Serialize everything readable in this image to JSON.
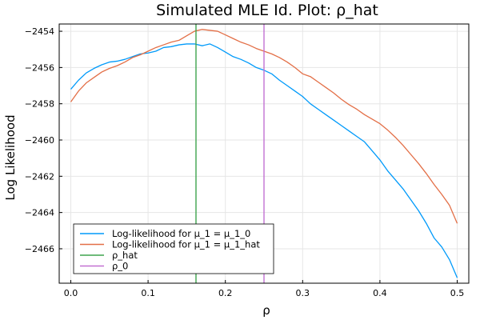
{
  "chart_data": {
    "type": "line",
    "title": "Simulated MLE Id. Plot: ρ_hat",
    "xlabel": "ρ",
    "ylabel": "Log Likelihood",
    "xlim": [
      -0.015,
      0.515
    ],
    "ylim": [
      -2467.9,
      -2453.6
    ],
    "xticks": [
      0.0,
      0.1,
      0.2,
      0.3,
      0.4,
      0.5
    ],
    "xtick_labels": [
      "0.0",
      "0.1",
      "0.2",
      "0.3",
      "0.4",
      "0.5"
    ],
    "yticks": [
      -2466,
      -2464,
      -2462,
      -2460,
      -2458,
      -2456,
      -2454
    ],
    "ytick_labels": [
      "−2466",
      "−2464",
      "−2462",
      "−2460",
      "−2458",
      "−2456",
      "−2454"
    ],
    "grid": true,
    "legend_position": "bottom-left",
    "x": [
      0.0,
      0.01,
      0.02,
      0.03,
      0.04,
      0.05,
      0.06,
      0.07,
      0.08,
      0.09,
      0.1,
      0.11,
      0.12,
      0.13,
      0.14,
      0.15,
      0.16,
      0.17,
      0.18,
      0.19,
      0.2,
      0.21,
      0.22,
      0.23,
      0.24,
      0.25,
      0.26,
      0.27,
      0.28,
      0.29,
      0.3,
      0.31,
      0.32,
      0.33,
      0.34,
      0.35,
      0.36,
      0.37,
      0.38,
      0.39,
      0.4,
      0.41,
      0.42,
      0.43,
      0.44,
      0.45,
      0.46,
      0.47,
      0.48,
      0.49,
      0.5
    ],
    "series": [
      {
        "name": "Log-likelihood for μ_1 = μ_1_0",
        "color": "#009AFA",
        "values": [
          -2457.2,
          -2456.7,
          -2456.3,
          -2456.05,
          -2455.85,
          -2455.7,
          -2455.65,
          -2455.55,
          -2455.4,
          -2455.25,
          -2455.2,
          -2455.1,
          -2454.9,
          -2454.85,
          -2454.75,
          -2454.7,
          -2454.7,
          -2454.8,
          -2454.7,
          -2454.9,
          -2455.15,
          -2455.4,
          -2455.55,
          -2455.75,
          -2456.0,
          -2456.15,
          -2456.35,
          -2456.7,
          -2457.0,
          -2457.3,
          -2457.6,
          -2458.0,
          -2458.3,
          -2458.6,
          -2458.9,
          -2459.2,
          -2459.5,
          -2459.8,
          -2460.1,
          -2460.6,
          -2461.1,
          -2461.7,
          -2462.2,
          -2462.7,
          -2463.3,
          -2463.9,
          -2464.6,
          -2465.4,
          -2465.9,
          -2466.6,
          -2467.6
        ]
      },
      {
        "name": "Log-likelihood for μ_1 = μ_1_hat",
        "color": "#E36F47",
        "values": [
          -2457.9,
          -2457.3,
          -2456.85,
          -2456.55,
          -2456.25,
          -2456.05,
          -2455.9,
          -2455.7,
          -2455.45,
          -2455.3,
          -2455.1,
          -2454.9,
          -2454.75,
          -2454.6,
          -2454.5,
          -2454.25,
          -2454.0,
          -2453.9,
          -2453.95,
          -2454.0,
          -2454.2,
          -2454.4,
          -2454.6,
          -2454.75,
          -2454.95,
          -2455.1,
          -2455.25,
          -2455.45,
          -2455.7,
          -2456.0,
          -2456.35,
          -2456.5,
          -2456.8,
          -2457.1,
          -2457.4,
          -2457.75,
          -2458.05,
          -2458.3,
          -2458.6,
          -2458.85,
          -2459.1,
          -2459.45,
          -2459.85,
          -2460.3,
          -2460.8,
          -2461.3,
          -2461.85,
          -2462.45,
          -2463.0,
          -2463.6,
          -2464.6
        ]
      }
    ],
    "vlines": [
      {
        "name": "ρ_hat",
        "x": 0.162,
        "color": "#3EA44E"
      },
      {
        "name": "ρ_0",
        "x": 0.25,
        "color": "#C271D2"
      }
    ]
  }
}
